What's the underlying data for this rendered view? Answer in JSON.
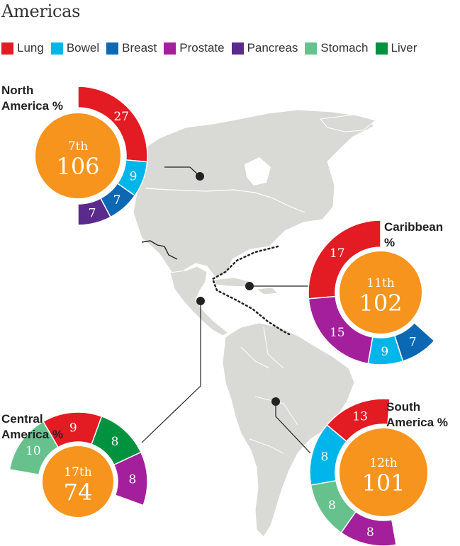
{
  "title": "Americas",
  "legend": [
    {
      "label": "Lung",
      "color": "#e31b23"
    },
    {
      "label": "Bowel",
      "color": "#00b5ea"
    },
    {
      "label": "Breast",
      "color": "#0d68b3"
    },
    {
      "label": "Prostate",
      "color": "#a41f9b"
    },
    {
      "label": "Pancreas",
      "color": "#5a2a8c"
    },
    {
      "label": "Stomach",
      "color": "#66c18c"
    },
    {
      "label": "Liver",
      "color": "#00923f"
    }
  ],
  "colors": {
    "rank_circle": "#f7941d",
    "map_land": "#d9d9d6",
    "map_border": "#ffffff",
    "leader_line": "#222222"
  },
  "chart_data": {
    "type": "donut-map",
    "unit": "%",
    "regions": [
      {
        "name_lines": [
          "North",
          "America"
        ],
        "unit": "%",
        "rank": "7th",
        "score": "106",
        "segments": [
          {
            "cancer": "Lung",
            "value": 27
          },
          {
            "cancer": "Bowel",
            "value": 9
          },
          {
            "cancer": "Breast",
            "value": 7
          },
          {
            "cancer": "Pancreas",
            "value": 7
          }
        ]
      },
      {
        "name_lines": [
          "Caribbean"
        ],
        "unit": "%",
        "rank": "11th",
        "score": "102",
        "segments": [
          {
            "cancer": "Lung",
            "value": 17
          },
          {
            "cancer": "Prostate",
            "value": 15
          },
          {
            "cancer": "Bowel",
            "value": 9
          },
          {
            "cancer": "Breast",
            "value": 7
          }
        ]
      },
      {
        "name_lines": [
          "Central",
          "America"
        ],
        "unit": "%",
        "rank": "17th",
        "score": "74",
        "segments": [
          {
            "cancer": "Stomach",
            "value": 10
          },
          {
            "cancer": "Lung",
            "value": 9
          },
          {
            "cancer": "Liver",
            "value": 8
          },
          {
            "cancer": "Prostate",
            "value": 8
          }
        ]
      },
      {
        "name_lines": [
          "South",
          "America"
        ],
        "unit": "%",
        "rank": "12th",
        "score": "101",
        "segments": [
          {
            "cancer": "Lung",
            "value": 13
          },
          {
            "cancer": "Bowel",
            "value": 8
          },
          {
            "cancer": "Stomach",
            "value": 8
          },
          {
            "cancer": "Prostate",
            "value": 8
          }
        ]
      }
    ]
  }
}
